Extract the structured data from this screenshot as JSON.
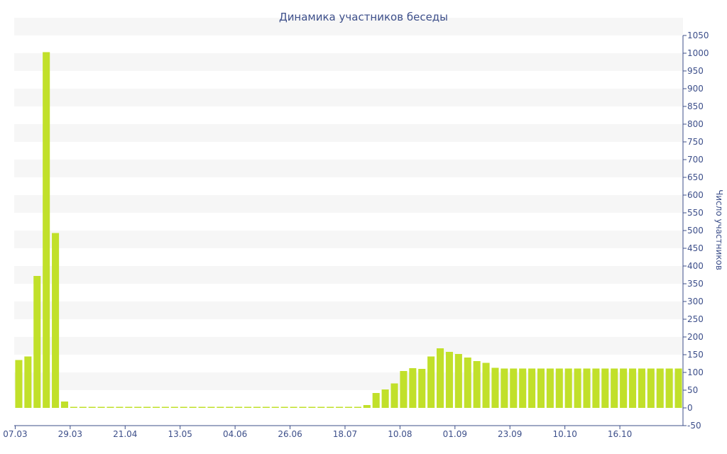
{
  "chart_data": {
    "type": "bar",
    "title": "Динамика участников беседы",
    "xlabel": "",
    "ylabel": "Число участников",
    "y_axis_side": "right",
    "ylim": [
      -50,
      1050
    ],
    "ytick_step": 50,
    "grid": "horizontal alternating bands",
    "legend": "none",
    "bar_color": "#c1e02a",
    "band_color": "#f6f6f6",
    "text_color": "#3d4f8a",
    "axis_color": "#3d4f8a",
    "x_tick_labels": [
      "07.03",
      "29.03",
      "21.04",
      "13.05",
      "04.06",
      "26.06",
      "18.07",
      "10.08",
      "01.09",
      "23.09",
      "10.10",
      "16.10"
    ],
    "x_tick_label_bar_index": [
      0,
      6,
      12,
      18,
      24,
      30,
      36,
      42,
      48,
      54,
      60,
      66
    ],
    "values": [
      135,
      145,
      372,
      1003,
      493,
      18,
      3,
      3,
      3,
      3,
      3,
      3,
      3,
      3,
      3,
      3,
      3,
      3,
      3,
      3,
      3,
      3,
      3,
      3,
      3,
      3,
      3,
      3,
      3,
      3,
      3,
      3,
      3,
      3,
      3,
      3,
      3,
      3,
      8,
      42,
      52,
      69,
      104,
      112,
      110,
      145,
      168,
      158,
      152,
      142,
      132,
      127,
      113,
      111,
      111,
      111,
      111,
      111,
      111,
      111,
      111,
      111,
      111,
      111,
      111,
      111,
      111,
      111,
      111,
      111,
      111,
      111,
      111
    ]
  }
}
